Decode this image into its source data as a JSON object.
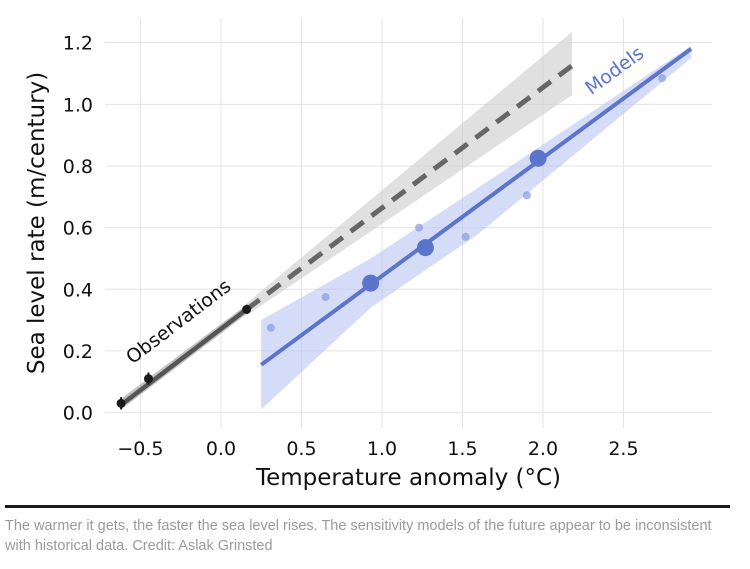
{
  "chart_data": {
    "type": "scatter",
    "xlabel": "Temperature anomaly (°C)",
    "ylabel": "Sea level rate (m/century)",
    "xlim": [
      -0.72,
      3.05
    ],
    "ylim": [
      -0.05,
      1.28
    ],
    "x_ticks": [
      -0.5,
      0.0,
      0.5,
      1.0,
      1.5,
      2.0,
      2.5
    ],
    "x_tick_labels": [
      "−0.5",
      "0.0",
      "0.5",
      "1.0",
      "1.5",
      "2.0",
      "2.5"
    ],
    "y_ticks": [
      0.0,
      0.2,
      0.4,
      0.6,
      0.8,
      1.0,
      1.2
    ],
    "y_tick_labels": [
      "0.0",
      "0.2",
      "0.4",
      "0.6",
      "0.8",
      "1.0",
      "1.2"
    ],
    "grid": true,
    "series": [
      {
        "name": "Observations",
        "color": "#1a1a1a",
        "points": [
          {
            "x": -0.62,
            "y": 0.03,
            "err": 0.02
          },
          {
            "x": -0.45,
            "y": 0.11,
            "err": 0.02
          },
          {
            "x": 0.16,
            "y": 0.335,
            "err": 0.015
          }
        ],
        "fit_line": {
          "x": [
            -0.62,
            0.16
          ],
          "y": [
            0.025,
            0.335
          ]
        },
        "band": {
          "x": [
            -0.62,
            0.16
          ],
          "lower": [
            0.01,
            0.32
          ],
          "upper": [
            0.045,
            0.35
          ]
        },
        "extrapolation": {
          "x": [
            0.16,
            2.18
          ],
          "y": [
            0.335,
            1.125
          ],
          "style": "dashed"
        },
        "extrapolation_band": {
          "x": [
            0.16,
            2.18
          ],
          "lower": [
            0.315,
            1.03
          ],
          "upper": [
            0.355,
            1.235
          ]
        }
      },
      {
        "name": "Models",
        "color": "#5b74cc",
        "large_points": [
          {
            "x": 0.93,
            "y": 0.42
          },
          {
            "x": 1.27,
            "y": 0.535
          },
          {
            "x": 1.97,
            "y": 0.825
          }
        ],
        "small_points": [
          {
            "x": 0.31,
            "y": 0.275
          },
          {
            "x": 0.65,
            "y": 0.375
          },
          {
            "x": 1.23,
            "y": 0.6
          },
          {
            "x": 1.52,
            "y": 0.57
          },
          {
            "x": 1.9,
            "y": 0.705
          },
          {
            "x": 2.74,
            "y": 1.085
          }
        ],
        "fit_line": {
          "x": [
            0.25,
            2.92
          ],
          "y": [
            0.155,
            1.18
          ]
        },
        "band": {
          "x": [
            0.25,
            0.93,
            1.6,
            2.92
          ],
          "lower": [
            0.01,
            0.34,
            0.58,
            1.15
          ],
          "upper": [
            0.3,
            0.5,
            0.73,
            1.19
          ]
        }
      }
    ],
    "annotations": [
      {
        "text": "Observations",
        "series": "Observations"
      },
      {
        "text": "Models",
        "series": "Models"
      }
    ]
  },
  "caption": "The warmer it gets, the faster the sea level rises. The sensitivity models of the future appear to be inconsistent with historical data. Credit: Aslak Grinsted"
}
